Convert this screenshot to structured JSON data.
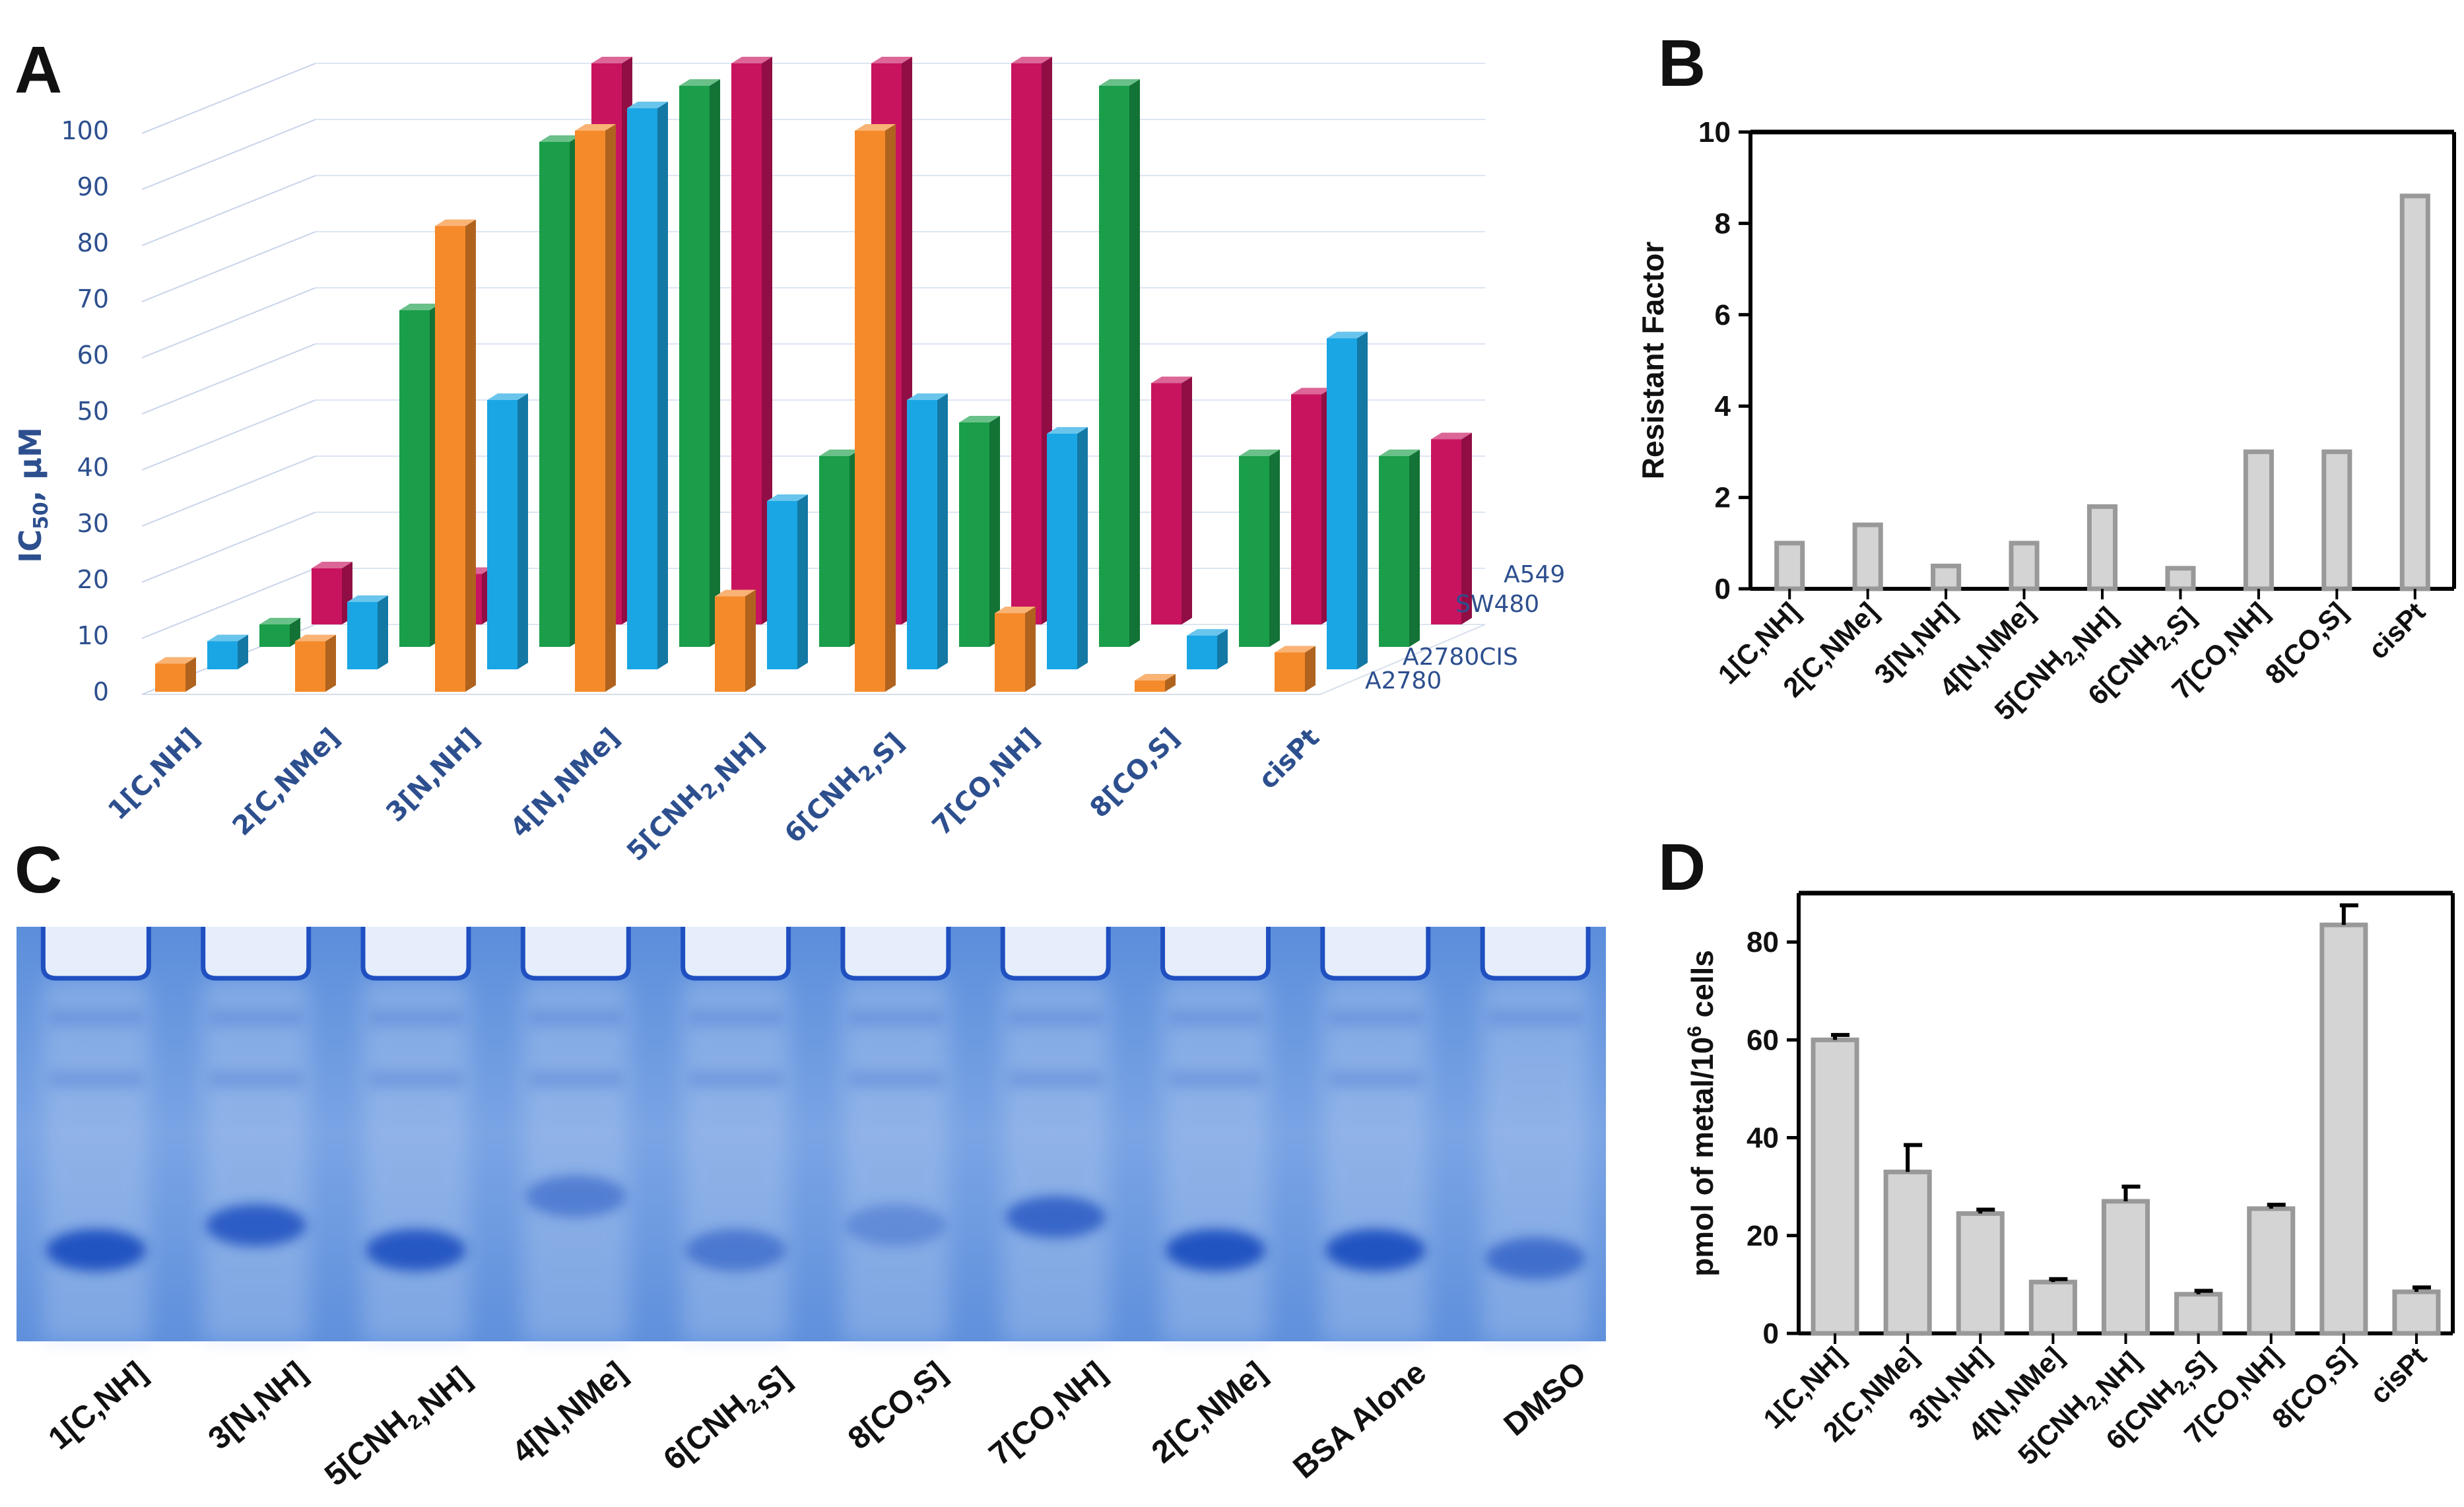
{
  "panels": {
    "a": "A",
    "b": "B",
    "c": "C",
    "d": "D"
  },
  "colors": {
    "A2780": "#f58a2a",
    "A2780CIS": "#1aa6e4",
    "SW480": "#1a9e4a",
    "A549": "#c8145f",
    "bw_bar": "#d4d4d4",
    "gel_bg": "#5e90dd",
    "gel_band": "#1f4fc0"
  },
  "chart_data": [
    {
      "id": "A",
      "type": "bar",
      "title": "",
      "ylabel": "IC50, µM",
      "ylim": [
        0,
        100
      ],
      "yticks": [
        "0",
        "10",
        "20",
        "30",
        "40",
        "50",
        "60",
        "70",
        "80",
        "90",
        "100"
      ],
      "categories": [
        "1[C,NH]",
        "2[C,NMe]",
        "3[N,NH]",
        "4[N,NMe]",
        "5[CNH2,NH]",
        "6[CNH2,S]",
        "7[CO,NH]",
        "8[CO,S]",
        "cisPt"
      ],
      "series": [
        {
          "name": "A2780",
          "values": [
            5,
            9,
            83,
            100,
            17,
            100,
            14,
            2,
            7
          ]
        },
        {
          "name": "A2780CIS",
          "values": [
            5,
            12,
            48,
            100,
            30,
            48,
            42,
            6,
            59
          ]
        },
        {
          "name": "SW480",
          "values": [
            4,
            60,
            90,
            100,
            34,
            40,
            100,
            34,
            34
          ]
        },
        {
          "name": "A549",
          "values": [
            10,
            9,
            100,
            100,
            100,
            100,
            43,
            41,
            33
          ]
        }
      ]
    },
    {
      "id": "B",
      "type": "bar",
      "title": "",
      "ylabel": "Resistant Factor",
      "ylim": [
        0,
        10
      ],
      "yticks": [
        "0",
        "2",
        "4",
        "6",
        "8",
        "10"
      ],
      "categories": [
        "1[C,NH]",
        "2[C,NMe]",
        "3[N,NH]",
        "4[N,NMe]",
        "5[CNH2,NH]",
        "6[CNH2,S]",
        "7[CO,NH]",
        "8[CO,S]",
        "cisPt"
      ],
      "values": [
        1.0,
        1.4,
        0.5,
        1.0,
        1.8,
        0.45,
        3.0,
        3.0,
        8.6
      ]
    },
    {
      "id": "D",
      "type": "bar",
      "title": "",
      "ylabel": "pmol of metal/10⁶ cells",
      "ylim": [
        0,
        90
      ],
      "yticks": [
        "0",
        "20",
        "40",
        "60",
        "80"
      ],
      "categories": [
        "1[C,NH]",
        "2[C,NMe]",
        "3[N,NH]",
        "4[N,NMe]",
        "5[CNH2,NH]",
        "6[CNH2,S]",
        "7[CO,NH]",
        "8[CO,S]",
        "cisPt"
      ],
      "values": [
        60,
        33,
        24.5,
        10.5,
        27,
        8,
        25.5,
        83.5,
        8.5
      ],
      "errors": [
        1,
        5.5,
        0.8,
        0.6,
        3,
        0.7,
        0.8,
        4,
        0.9
      ]
    }
  ],
  "gel": {
    "lanes": [
      {
        "label": "1[C,NH]",
        "band_pos": 0.78,
        "band_int": 0.95
      },
      {
        "label": "3[N,NH]",
        "band_pos": 0.72,
        "band_int": 0.85
      },
      {
        "label": "5[CNH2,NH]",
        "band_pos": 0.78,
        "band_int": 0.9
      },
      {
        "label": "4[N,NMe]",
        "band_pos": 0.65,
        "band_int": 0.5
      },
      {
        "label": "6[CNH2,S]",
        "band_pos": 0.78,
        "band_int": 0.55
      },
      {
        "label": "8[CO,S]",
        "band_pos": 0.72,
        "band_int": 0.35
      },
      {
        "label": "7[CO,NH]",
        "band_pos": 0.7,
        "band_int": 0.75
      },
      {
        "label": "2[C,NMe]",
        "band_pos": 0.78,
        "band_int": 0.95
      },
      {
        "label": "BSA Alone",
        "band_pos": 0.78,
        "band_int": 0.95
      },
      {
        "label": "DMSO",
        "band_pos": 0.8,
        "band_int": 0.65
      }
    ]
  }
}
